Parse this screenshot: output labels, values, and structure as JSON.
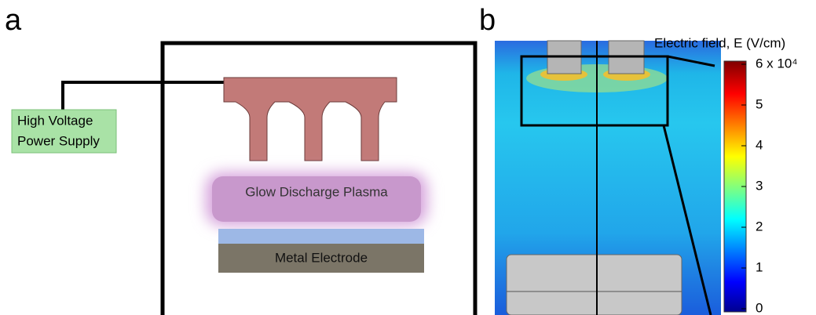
{
  "panels": {
    "a": "a",
    "b": "b"
  },
  "power_supply": {
    "line1": "High Voltage",
    "line2": "Power Supply"
  },
  "plasma": "Glow Discharge Plasma",
  "electrode": "Metal Electrode",
  "colorbar": {
    "label": "Electric field, E (V/cm)",
    "range": [
      0,
      6
    ],
    "ticks": [
      {
        "value": 6,
        "label": "6 x 10⁴"
      },
      5,
      4,
      3,
      2,
      1,
      0
    ]
  }
}
